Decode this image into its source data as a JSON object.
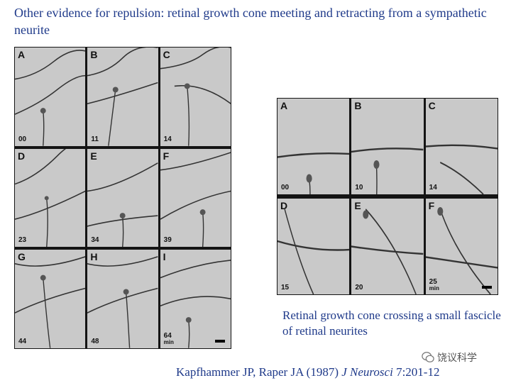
{
  "slide": {
    "title": "Other evidence for repulsion: retinal growth cone meeting and retracting from a sympathetic neurite",
    "caption": "Retinal growth cone crossing a small fascicle of retinal neurites",
    "citation": {
      "authors": "Kapfhammer JP, Raper JA (1987) ",
      "journal": "J Neurosci",
      "volume_pages": " 7:201-12"
    },
    "watermark": "饶议科学"
  },
  "left_figure": {
    "panels": [
      {
        "label": "A",
        "time": "00"
      },
      {
        "label": "B",
        "time": "11"
      },
      {
        "label": "C",
        "time": "14"
      },
      {
        "label": "D",
        "time": "23"
      },
      {
        "label": "E",
        "time": "34"
      },
      {
        "label": "F",
        "time": "39"
      },
      {
        "label": "G",
        "time": "44"
      },
      {
        "label": "H",
        "time": "48"
      },
      {
        "label": "I",
        "time": "64",
        "unit": "min"
      }
    ]
  },
  "right_figure": {
    "panels": [
      {
        "label": "A",
        "time": "00"
      },
      {
        "label": "B",
        "time": "10"
      },
      {
        "label": "C",
        "time": "14"
      },
      {
        "label": "D",
        "time": "15"
      },
      {
        "label": "E",
        "time": "20"
      },
      {
        "label": "F",
        "time": "25",
        "unit": "min"
      }
    ]
  }
}
